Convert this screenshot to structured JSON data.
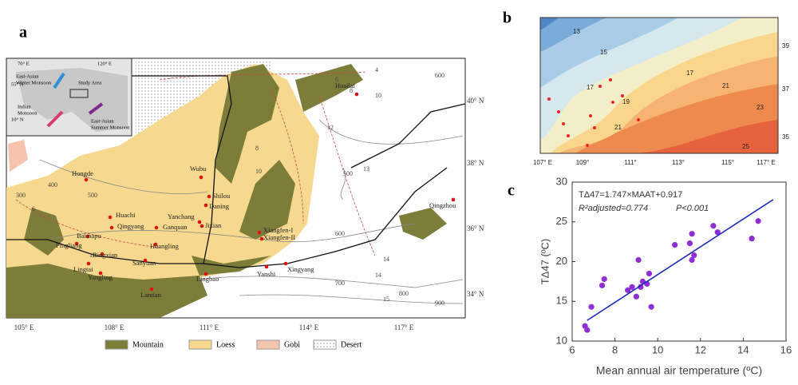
{
  "panel_a": {
    "label": "a",
    "inset": [
      "70° E",
      "120° E",
      "55° N",
      "10° N",
      "East-Asian",
      "Winter Monsoon",
      "Study Area",
      "Indian",
      "Monsoon",
      "East-Asian",
      "Summer Monsoon"
    ],
    "places": [
      "Huailai",
      "Wubu",
      "Shilou",
      "Daning",
      "Hongde",
      "Huachi",
      "Qingyang",
      "Yanchang",
      "Jixian",
      "Ganquan",
      "Baimapu",
      "Pingliang",
      "Huangling",
      "Xiangfen-I",
      "Xiangfen-II",
      "Bingxian",
      "Sanyuan",
      "Lingtai",
      "Yangling",
      "Lingbao",
      "Yanshi",
      "Xingyang",
      "Lantian",
      "Qingzhou"
    ],
    "contour_labels": [
      "4",
      "6",
      "8",
      "10",
      "12",
      "13",
      "14",
      "15",
      "300",
      "400",
      "500",
      "600",
      "700",
      "800",
      "900",
      "600",
      "500",
      "6",
      "8",
      "10",
      "12",
      "14"
    ],
    "lon_labels": [
      "105° E",
      "108° E",
      "111° E",
      "114° E",
      "117° E"
    ],
    "lat_labels": [
      "40° N",
      "38° N",
      "36° N",
      "34° N"
    ],
    "legend": [
      "Mountain",
      "Loess",
      "Gobi",
      "Desert"
    ]
  },
  "panel_b": {
    "label": "b",
    "lon_labels": [
      "107° E",
      "109°",
      "111°",
      "113°",
      "115°",
      "117° E"
    ],
    "lat_labels": [
      "39",
      "37",
      "35"
    ],
    "contour_labels": [
      "13",
      "15",
      "17",
      "17",
      "19",
      "21",
      "21",
      "23",
      "25"
    ]
  },
  "panel_c": {
    "label": "c",
    "chart_data": {
      "type": "scatter",
      "xlabel": "Mean annual air temperature (ºC)",
      "ylabel": "TΔ47 (ºC)",
      "annotation": "TΔ47=1.747×MAAT+0.917",
      "annotation2": "R²adjusted=0.774",
      "annotation3": "P<0.001",
      "xlim": [
        6,
        16
      ],
      "ylim": [
        10,
        30
      ],
      "xticks": [
        6,
        8,
        10,
        12,
        14,
        16
      ],
      "yticks": [
        10,
        15,
        20,
        25,
        30
      ],
      "series": [
        {
          "color": "#8e2fd6",
          "x": [
            6.6,
            6.7,
            6.9,
            7.4,
            7.5,
            8.6,
            8.8,
            9.0,
            9.1,
            9.2,
            9.5,
            9.6,
            9.7,
            10.8,
            11.5,
            11.6,
            11.7,
            11.6,
            12.6,
            12.8,
            14.4,
            14.7,
            9.3
          ],
          "values": [
            11.9,
            11.4,
            14.3,
            17.0,
            17.8,
            16.4,
            16.8,
            15.6,
            20.2,
            16.8,
            17.2,
            18.5,
            14.3,
            22.1,
            22.3,
            23.5,
            20.8,
            20.2,
            24.5,
            23.7,
            22.9,
            25.1,
            17.5
          ]
        },
        {
          "color": "#1a2ab8",
          "type": "line",
          "x": [
            6.7,
            15.4
          ],
          "values": [
            12.6,
            27.8
          ]
        }
      ]
    }
  }
}
